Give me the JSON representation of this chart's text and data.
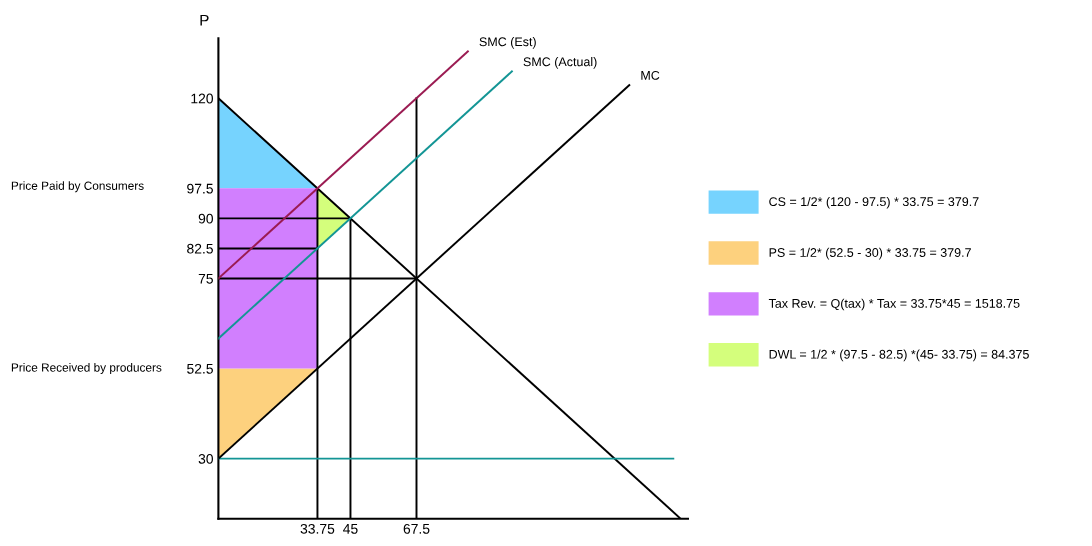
{
  "chart_data": {
    "type": "line",
    "ylabel": "P",
    "xlim": [
      0,
      160
    ],
    "ylim": [
      15,
      135
    ],
    "xticks": [
      33.75,
      45,
      67.5
    ],
    "yticks": [
      30,
      52.5,
      75,
      82.5,
      90,
      97.5,
      120
    ],
    "grid": false,
    "legend": "right",
    "marker": "none",
    "line_style": "solid",
    "series": [
      {
        "type": "area",
        "name": "CS = 1/2* (120 - 97.5) * 33.75 = 379.7",
        "color": "#76d3fe",
        "x": [
          0,
          33.75,
          0
        ],
        "values": [
          120,
          97.5,
          97.5
        ]
      },
      {
        "type": "area",
        "name": "PS = 1/2* (52.5 - 30) * 33.75 = 379.7",
        "color": "#fdd17e",
        "x": [
          0,
          33.75,
          0
        ],
        "values": [
          52.5,
          52.5,
          30
        ]
      },
      {
        "type": "area",
        "name": "Tax Rev. = Q(tax) * Tax = 33.75*45 = 1518.75",
        "color": "#d17ffe",
        "x": [
          0,
          33.75,
          33.75,
          0
        ],
        "values": [
          97.5,
          97.5,
          52.5,
          52.5
        ]
      },
      {
        "type": "area",
        "name": "DWL = 1/2 * (97.5 - 82.5) *(45- 33.75) = 84.375",
        "color": "#d4fe7c",
        "x": [
          33.75,
          45,
          33.75
        ],
        "values": [
          97.5,
          90,
          82.5
        ]
      },
      {
        "color": "#000000",
        "x": [
          33.75,
          33.75
        ],
        "values": [
          15,
          97.5
        ]
      },
      {
        "color": "#000000",
        "x": [
          45,
          45
        ],
        "values": [
          15,
          90
        ]
      },
      {
        "color": "#000000",
        "x": [
          67.5,
          67.5
        ],
        "values": [
          15,
          120
        ]
      },
      {
        "color": "#000000",
        "x": [
          0,
          45
        ],
        "values": [
          90,
          90
        ]
      },
      {
        "color": "#000000",
        "x": [
          0,
          33.75
        ],
        "values": [
          82.5,
          82.5
        ]
      },
      {
        "color": "#000000",
        "x": [
          0,
          67.5
        ],
        "values": [
          75,
          75
        ]
      },
      {
        "color": "#000000",
        "x": [
          0,
          157.5
        ],
        "values": [
          120,
          15
        ]
      },
      {
        "color": "#139595",
        "x": [
          0,
          155
        ],
        "values": [
          30,
          30
        ]
      },
      {
        "name": "SMC (Est)",
        "color": "#9b1b52",
        "x": [
          0,
          85
        ],
        "values": [
          75,
          131.7
        ]
      },
      {
        "name": "SMC (Actual)",
        "color": "#139595",
        "x": [
          0,
          100
        ],
        "values": [
          60,
          126.7
        ]
      },
      {
        "name": "MC",
        "color": "#000000",
        "x": [
          0,
          140
        ],
        "values": [
          30,
          123.3
        ]
      }
    ],
    "annotations": [
      "Price Paid by Consumers",
      "Price Received by producers"
    ]
  }
}
